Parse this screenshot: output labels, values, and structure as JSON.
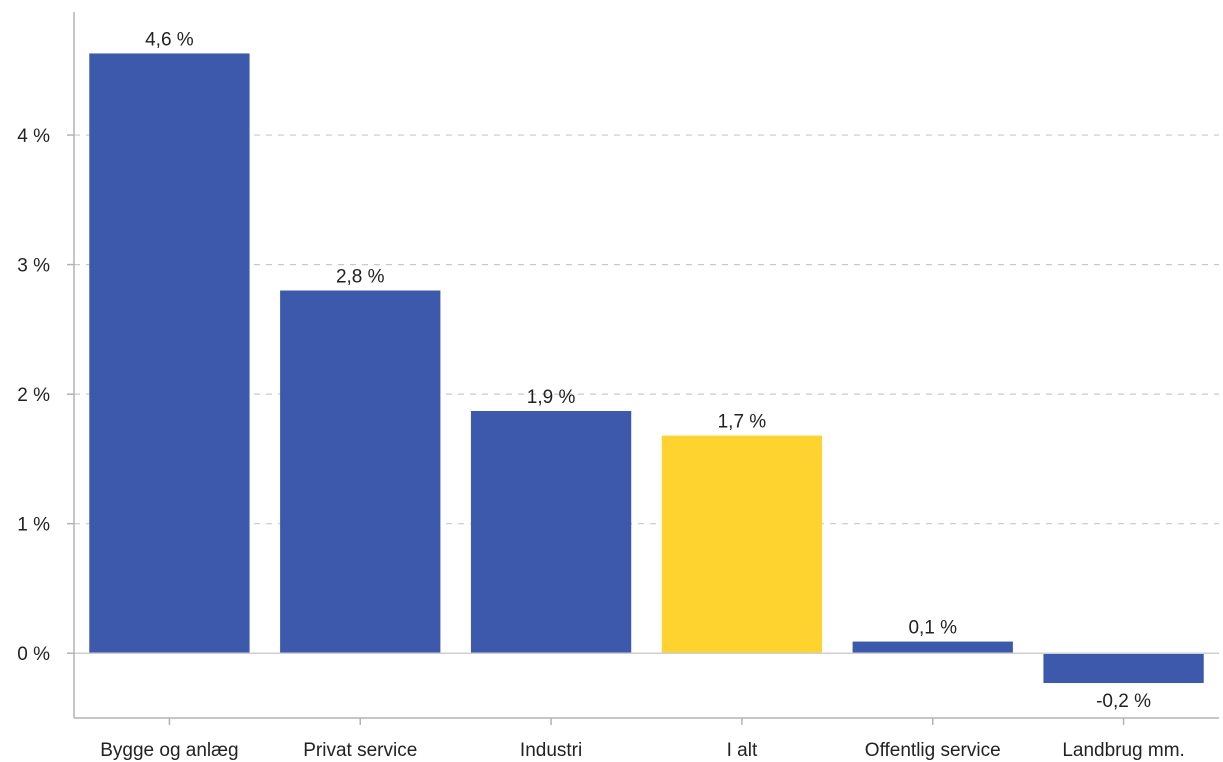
{
  "chart_data": {
    "type": "bar",
    "categories": [
      "Bygge og anlæg",
      "Privat service",
      "Industri",
      "I alt",
      "Offentlig service",
      "Landbrug mm."
    ],
    "values": [
      4.63,
      2.8,
      1.87,
      1.68,
      0.09,
      -0.23
    ],
    "value_labels": [
      "4,6 %",
      "2,8 %",
      "1,9 %",
      "1,7 %",
      "0,1 %",
      "-0,2 %"
    ],
    "highlight": [
      false,
      false,
      false,
      true,
      false,
      false
    ],
    "yticks": [
      0,
      1,
      2,
      3,
      4
    ],
    "ytick_labels": [
      "0 %",
      "1 %",
      "2 %",
      "3 %",
      "4 %"
    ],
    "ylim": [
      -0.5,
      4.95
    ],
    "grid": "horizontal dashed",
    "title": "",
    "xlabel": "",
    "ylabel": "",
    "colors": {
      "bar": "#3d59ab",
      "highlight": "#fed330"
    }
  }
}
